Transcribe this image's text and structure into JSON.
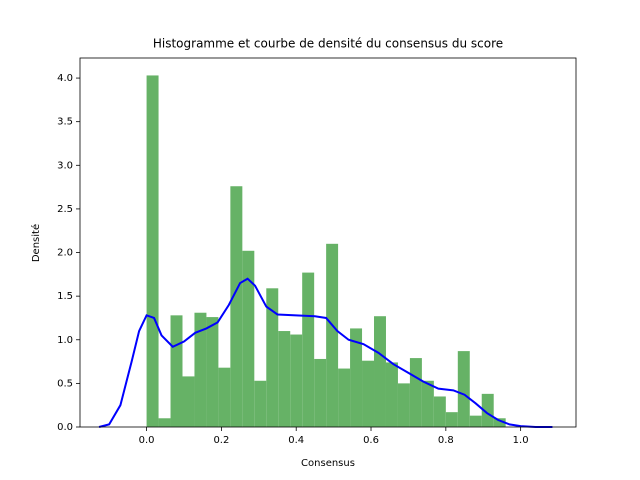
{
  "chart_data": {
    "type": "histogram",
    "title": "Histogramme et courbe de densité du consensus du score",
    "x_label": "Consensus",
    "y_label": "Densité",
    "bins": [
      0,
      0.032,
      0.064,
      0.096,
      0.128,
      0.16,
      0.192,
      0.224,
      0.256,
      0.288,
      0.32,
      0.352,
      0.384,
      0.416,
      0.448,
      0.48,
      0.512,
      0.544,
      0.576,
      0.608,
      0.64,
      0.672,
      0.704,
      0.736,
      0.768,
      0.8,
      0.832,
      0.864,
      0.896,
      0.928,
      0.96
    ],
    "values": [
      4.03,
      0.1,
      1.28,
      0.58,
      1.31,
      1.26,
      0.68,
      2.76,
      2.02,
      0.53,
      1.59,
      1.1,
      1.06,
      1.77,
      0.78,
      2.1,
      0.67,
      1.13,
      0.76,
      1.27,
      0.74,
      0.5,
      0.79,
      0.53,
      0.35,
      0.17,
      0.87,
      0.13,
      0.38,
      0.1
    ],
    "color": "#66b266",
    "overlay": {
      "type": "line",
      "color": "#0000ff",
      "x": [
        -0.127,
        -0.1,
        -0.07,
        -0.04,
        -0.02,
        0,
        0.02,
        0.04,
        0.07,
        0.1,
        0.13,
        0.16,
        0.19,
        0.22,
        0.25,
        0.27,
        0.29,
        0.32,
        0.35,
        0.4,
        0.45,
        0.48,
        0.51,
        0.54,
        0.58,
        0.62,
        0.66,
        0.7,
        0.74,
        0.78,
        0.82,
        0.85,
        0.88,
        0.91,
        0.94,
        0.97,
        1.0,
        1.04,
        1.085
      ],
      "values": [
        0,
        0.03,
        0.25,
        0.75,
        1.1,
        1.28,
        1.25,
        1.05,
        0.92,
        0.98,
        1.08,
        1.13,
        1.2,
        1.4,
        1.65,
        1.7,
        1.62,
        1.38,
        1.29,
        1.28,
        1.27,
        1.25,
        1.1,
        1.0,
        0.95,
        0.85,
        0.72,
        0.62,
        0.52,
        0.44,
        0.42,
        0.37,
        0.27,
        0.16,
        0.08,
        0.03,
        0.01,
        0,
        0
      ]
    },
    "xlim": [
      -0.178,
      1.148
    ],
    "ylim": [
      0,
      4.23
    ],
    "xticks": [
      {
        "value": 0,
        "label": "0.0"
      },
      {
        "value": 0.2,
        "label": "0.2"
      },
      {
        "value": 0.4,
        "label": "0.4"
      },
      {
        "value": 0.6,
        "label": "0.6"
      },
      {
        "value": 0.8,
        "label": "0.8"
      },
      {
        "value": 1,
        "label": "1.0"
      }
    ],
    "yticks": [
      {
        "value": 0,
        "label": "0.0"
      },
      {
        "value": 0.5,
        "label": "0.5"
      },
      {
        "value": 1,
        "label": "1.0"
      },
      {
        "value": 1.5,
        "label": "1.5"
      },
      {
        "value": 2,
        "label": "2.0"
      },
      {
        "value": 2.5,
        "label": "2.5"
      },
      {
        "value": 3,
        "label": "3.0"
      },
      {
        "value": 3.5,
        "label": "3.5"
      },
      {
        "value": 4,
        "label": "4.0"
      }
    ]
  }
}
